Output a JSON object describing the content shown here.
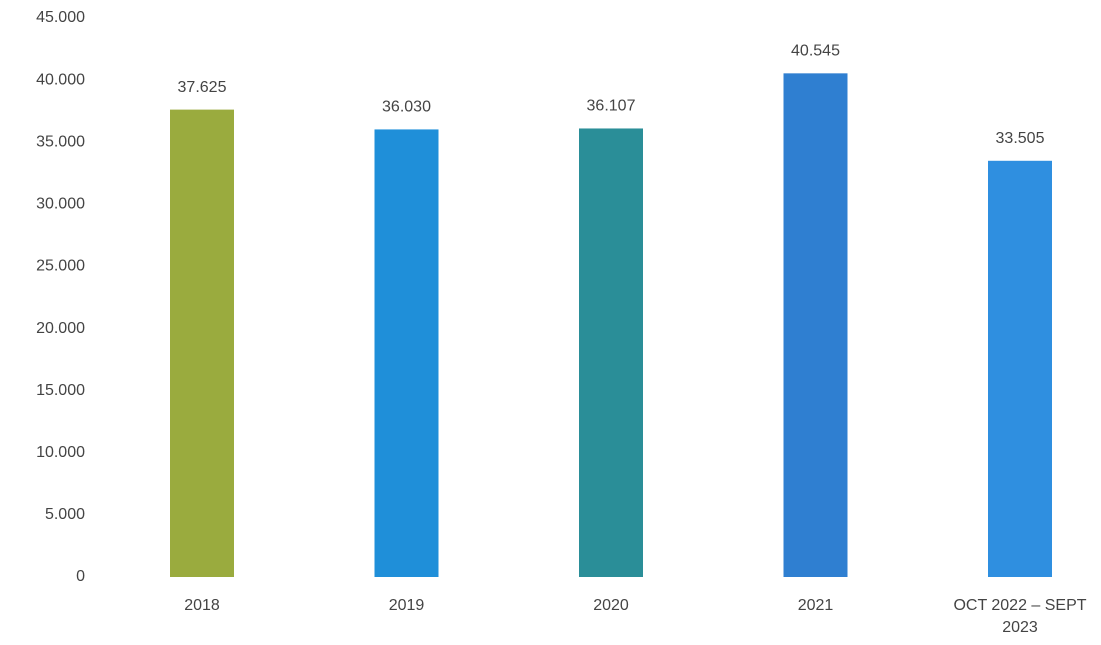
{
  "chart_data": {
    "type": "bar",
    "categories": [
      "2018",
      "2019",
      "2020",
      "2021",
      "OCT 2022 – SEPT 2023"
    ],
    "values": [
      37625,
      36030,
      36107,
      40545,
      33505
    ],
    "value_labels": [
      "37.625",
      "36.030",
      "36.107",
      "40.545",
      "33.505"
    ],
    "colors": [
      "#9aab3e",
      "#1f8fd9",
      "#2a8e98",
      "#2f7fd1",
      "#2f8fe0"
    ],
    "ylim": [
      0,
      45000
    ],
    "yticks": [
      0,
      {
        "value": 5000,
        "label": "5.000"
      },
      {
        "value": 10000,
        "label": "10.000"
      },
      {
        "value": 15000,
        "label": "15.000"
      },
      {
        "value": 20000,
        "label": "20.000"
      },
      {
        "value": 25000,
        "label": "25.000"
      },
      {
        "value": 30000,
        "label": "30.000"
      },
      {
        "value": 35000,
        "label": "35.000"
      },
      {
        "value": 40000,
        "label": "40.000"
      },
      {
        "value": 45000,
        "label": "45.000"
      }
    ],
    "grid": false
  }
}
